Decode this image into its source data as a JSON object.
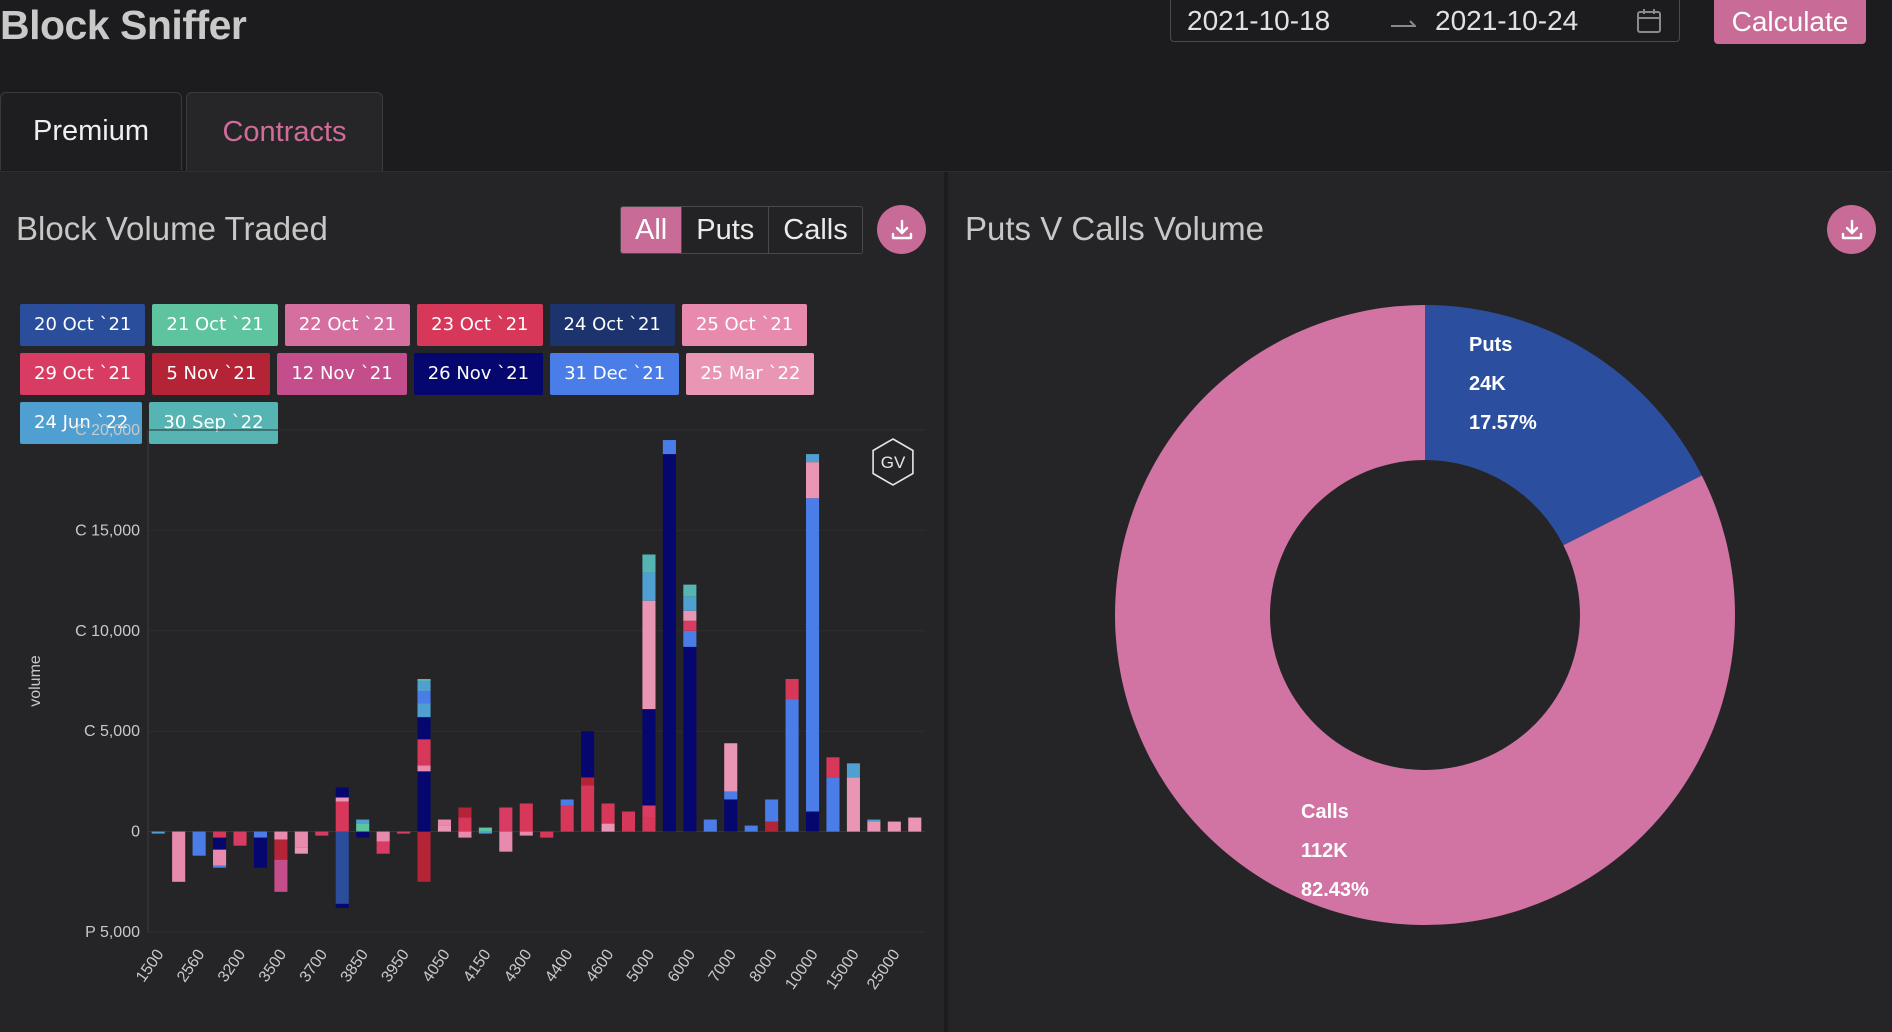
{
  "app": {
    "title": "Block Sniffer"
  },
  "date_range": {
    "start": "2021-10-18",
    "end": "2021-10-24"
  },
  "calculate_label": "Calculate",
  "icons": {
    "calendar": "calendar-icon",
    "download": "download-icon"
  },
  "tabs": [
    {
      "label": "Premium",
      "active": false
    },
    {
      "label": "Contracts",
      "active": true
    }
  ],
  "left_panel": {
    "title": "Block Volume Traded",
    "filters": [
      {
        "label": "All",
        "active": true
      },
      {
        "label": "Puts",
        "active": false
      },
      {
        "label": "Calls",
        "active": false
      }
    ]
  },
  "right_panel": {
    "title": "Puts V Calls Volume"
  },
  "colors": {
    "accent": "#c86b97",
    "puts": "#2b4f9e",
    "calls": "#d173a3",
    "background": "#1c1b1d",
    "panel": "#252527"
  },
  "chart_data": [
    {
      "type": "bar",
      "stacked": true,
      "ylabel": "volume",
      "ylim": [
        -5000,
        20000
      ],
      "y_ticks": [
        {
          "value": 20000,
          "label": "C 20,000"
        },
        {
          "value": 15000,
          "label": "C 15,000"
        },
        {
          "value": 10000,
          "label": "C 10,000"
        },
        {
          "value": 5000,
          "label": "C 5,000"
        },
        {
          "value": 0,
          "label": "0"
        },
        {
          "value": -5000,
          "label": "P 5,000"
        }
      ],
      "x_tick_labels": [
        "1500",
        "2560",
        "3200",
        "3500",
        "3700",
        "3850",
        "3950",
        "4050",
        "4150",
        "4300",
        "4400",
        "4600",
        "5000",
        "6000",
        "7000",
        "8000",
        "10000",
        "15000",
        "25000"
      ],
      "watermark": "GV",
      "series": [
        {
          "name": "20 Oct `21",
          "color": "#2a4d9c"
        },
        {
          "name": "21 Oct `21",
          "color": "#5ec4a0"
        },
        {
          "name": "22 Oct `21",
          "color": "#d56fa0"
        },
        {
          "name": "23 Oct `21",
          "color": "#d7385a"
        },
        {
          "name": "24 Oct `21",
          "color": "#1d336e"
        },
        {
          "name": "25 Oct `21",
          "color": "#e88aad"
        },
        {
          "name": "29 Oct `21",
          "color": "#d93c62"
        },
        {
          "name": "5 Nov `21",
          "color": "#b52436"
        },
        {
          "name": "12 Nov `21",
          "color": "#c44d8b"
        },
        {
          "name": "26 Nov `21",
          "color": "#06076e"
        },
        {
          "name": "31 Dec `21",
          "color": "#4a7de8"
        },
        {
          "name": "25 Mar `22",
          "color": "#e995b4"
        },
        {
          "name": "24 Jun `22",
          "color": "#4f9fd0"
        },
        {
          "name": "30 Sep `22",
          "color": "#56b4b2"
        }
      ],
      "bars": [
        [
          [
            12,
            -100
          ]
        ],
        [
          [
            5,
            -2500
          ]
        ],
        [
          [
            10,
            -1200
          ]
        ],
        [
          [
            3,
            -300
          ],
          [
            9,
            -600
          ],
          [
            5,
            -800
          ],
          [
            10,
            -100
          ]
        ],
        [
          [
            6,
            -700
          ]
        ],
        [
          [
            10,
            -300
          ],
          [
            9,
            -1500
          ]
        ],
        [
          [
            5,
            -400
          ],
          [
            7,
            -1000
          ],
          [
            8,
            -1600
          ]
        ],
        [
          [
            5,
            -800
          ],
          [
            11,
            -300
          ]
        ],
        [
          [
            6,
            -200
          ]
        ],
        [
          [
            3,
            1500
          ],
          [
            11,
            200
          ],
          [
            9,
            500
          ],
          [
            0,
            -3600
          ],
          [
            9,
            -200
          ]
        ],
        [
          [
            1,
            400
          ],
          [
            12,
            200
          ],
          [
            9,
            -300
          ]
        ],
        [
          [
            5,
            -500
          ],
          [
            6,
            -600
          ]
        ],
        [
          [
            6,
            -100
          ]
        ],
        [
          [
            7,
            -2500
          ],
          [
            9,
            3000
          ],
          [
            5,
            300
          ],
          [
            3,
            1300
          ],
          [
            9,
            1100
          ],
          [
            12,
            700
          ],
          [
            10,
            600
          ],
          [
            12,
            500
          ],
          [
            13,
            100
          ]
        ],
        [
          [
            11,
            300
          ],
          [
            5,
            300
          ]
        ],
        [
          [
            3,
            700
          ],
          [
            7,
            500
          ],
          [
            5,
            -300
          ]
        ],
        [
          [
            1,
            200
          ],
          [
            12,
            -100
          ]
        ],
        [
          [
            6,
            1200
          ],
          [
            5,
            -1000
          ]
        ],
        [
          [
            3,
            1400
          ],
          [
            5,
            -200
          ]
        ],
        [
          [
            3,
            -300
          ]
        ],
        [
          [
            3,
            1300
          ],
          [
            10,
            300
          ]
        ],
        [
          [
            3,
            2300
          ],
          [
            7,
            400
          ],
          [
            9,
            2300
          ]
        ],
        [
          [
            11,
            400
          ],
          [
            3,
            1000
          ]
        ],
        [
          [
            3,
            1000
          ]
        ],
        [
          [
            3,
            700
          ],
          [
            6,
            600
          ],
          [
            9,
            4800
          ],
          [
            11,
            5400
          ],
          [
            12,
            1400
          ],
          [
            13,
            900
          ]
        ],
        [
          [
            9,
            18800
          ],
          [
            10,
            700
          ]
        ],
        [
          [
            9,
            9200
          ],
          [
            10,
            800
          ],
          [
            6,
            500
          ],
          [
            11,
            500
          ],
          [
            12,
            700
          ],
          [
            13,
            600
          ]
        ],
        [
          [
            10,
            600
          ]
        ],
        [
          [
            9,
            1600
          ],
          [
            10,
            400
          ],
          [
            11,
            2400
          ]
        ],
        [
          [
            10,
            300
          ]
        ],
        [
          [
            7,
            500
          ],
          [
            10,
            1100
          ]
        ],
        [
          [
            10,
            6600
          ],
          [
            3,
            1000
          ]
        ],
        [
          [
            9,
            1000
          ],
          [
            10,
            15600
          ],
          [
            11,
            1800
          ],
          [
            12,
            400
          ]
        ],
        [
          [
            10,
            2700
          ],
          [
            3,
            1000
          ]
        ],
        [
          [
            11,
            2700
          ],
          [
            12,
            700
          ]
        ],
        [
          [
            11,
            500
          ],
          [
            12,
            100
          ]
        ],
        [
          [
            11,
            500
          ]
        ],
        [
          [
            11,
            700
          ]
        ]
      ]
    },
    {
      "type": "pie",
      "donut": true,
      "slices": [
        {
          "label": "Puts",
          "value_label": "24K",
          "percent_label": "17.57%",
          "percent": 17.57,
          "color": "#2b4f9e"
        },
        {
          "label": "Calls",
          "value_label": "112K",
          "percent_label": "82.43%",
          "percent": 82.43,
          "color": "#d173a3"
        }
      ]
    }
  ]
}
